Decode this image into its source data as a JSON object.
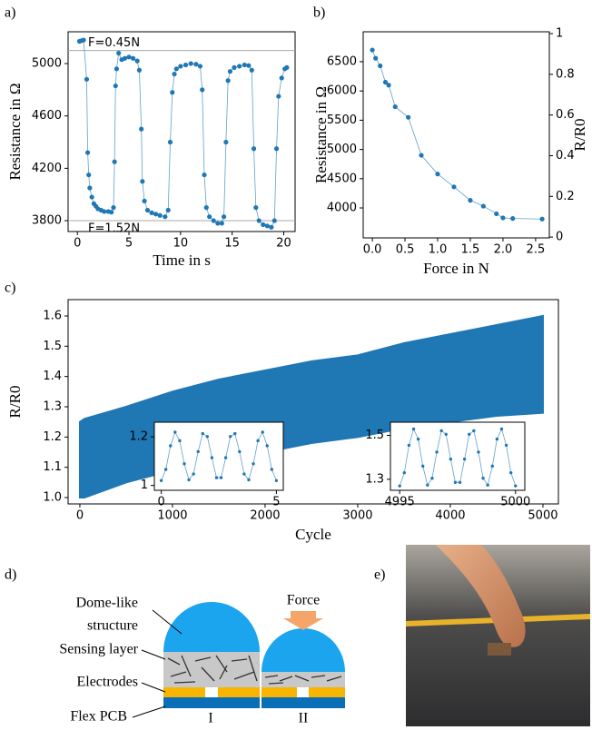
{
  "chart_data": [
    {
      "type": "line",
      "panel": "a)",
      "xlabel": "Time in s",
      "ylabel": "Resistance in Ω",
      "color": "#1f77b4",
      "x": [
        0.2,
        0.4,
        0.6,
        0.9,
        1.0,
        1.1,
        1.2,
        1.4,
        1.6,
        1.8,
        2.0,
        2.3,
        2.6,
        3.0,
        3.3,
        3.5,
        3.6,
        3.7,
        3.8,
        4.0,
        4.3,
        4.6,
        5.0,
        5.4,
        5.8,
        6.0,
        6.2,
        6.3,
        6.5,
        6.8,
        7.2,
        7.6,
        8.0,
        8.5,
        8.8,
        9.0,
        9.2,
        9.4,
        9.6,
        10.0,
        10.5,
        11.0,
        11.5,
        11.9,
        12.1,
        12.3,
        12.5,
        12.8,
        13.2,
        13.6,
        14.0,
        14.2,
        14.4,
        14.6,
        14.8,
        15.2,
        15.7,
        16.2,
        16.6,
        16.9,
        17.1,
        17.3,
        17.6,
        18.0,
        18.4,
        18.8,
        19.1,
        19.3,
        19.5,
        19.8,
        20.1,
        20.3
      ],
      "values": [
        5170,
        5175,
        5180,
        4880,
        4320,
        4150,
        4050,
        3980,
        3930,
        3910,
        3890,
        3880,
        3870,
        3870,
        3865,
        3900,
        4250,
        4830,
        4960,
        5080,
        5030,
        5040,
        5050,
        5040,
        5020,
        4950,
        4500,
        4100,
        3950,
        3880,
        3860,
        3850,
        3840,
        3830,
        3880,
        4400,
        4780,
        4920,
        4960,
        4980,
        4990,
        5000,
        4995,
        4980,
        4800,
        4150,
        3900,
        3830,
        3800,
        3780,
        3780,
        3830,
        4400,
        4870,
        4940,
        4970,
        4980,
        4990,
        4985,
        4950,
        4350,
        3900,
        3800,
        3770,
        3760,
        3750,
        3800,
        4350,
        4750,
        4890,
        4960,
        4970
      ],
      "xlim": [
        -0.9,
        21.1
      ],
      "ylim": [
        3717,
        5243
      ],
      "xticks": [
        0,
        5,
        10,
        15,
        20
      ],
      "yticks": [
        3800,
        4200,
        4600,
        5000
      ],
      "reference_lines": [
        {
          "value": 5100,
          "label": "F=0.45N"
        },
        {
          "value": 3800,
          "label": "F=1.52N"
        }
      ]
    },
    {
      "type": "line",
      "panel": "b)",
      "xlabel": "Force in N",
      "ylabel": "Resistance in Ω",
      "y2label": "R/R0",
      "color": "#1f77b4",
      "x": [
        0.0,
        0.05,
        0.12,
        0.2,
        0.25,
        0.35,
        0.55,
        0.75,
        1.0,
        1.25,
        1.5,
        1.7,
        1.9,
        2.0,
        2.15,
        2.6
      ],
      "values": [
        6700,
        6560,
        6430,
        6150,
        6100,
        5730,
        5550,
        4900,
        4580,
        4360,
        4130,
        4030,
        3900,
        3830,
        3820,
        3810
      ],
      "xlim": [
        -0.14,
        2.71
      ],
      "ylim": [
        3488,
        7012
      ],
      "y2lim": [
        -0.004,
        1.009
      ],
      "xticks": [
        {
          "value": 0,
          "label": "0.0"
        },
        0.5,
        {
          "value": 1,
          "label": "1.0"
        },
        1.5,
        {
          "value": 2,
          "label": "2.0"
        },
        2.5
      ],
      "yticks": [
        4000,
        4500,
        5000,
        5500,
        6000,
        6500
      ],
      "y2ticks": [
        0,
        0.2,
        0.4,
        0.6,
        0.8,
        1
      ]
    },
    {
      "type": "band",
      "panel": "c)",
      "xlabel": "Cycle",
      "ylabel": "R/R0",
      "color": "#1f77b4",
      "x": [
        0,
        50,
        500,
        1000,
        1500,
        2000,
        2500,
        3000,
        3500,
        4000,
        4500,
        5000
      ],
      "band_high": [
        1.25,
        1.26,
        1.3,
        1.35,
        1.39,
        1.42,
        1.45,
        1.47,
        1.51,
        1.54,
        1.57,
        1.6
      ],
      "band_low": [
        1.0,
        1.0,
        1.05,
        1.09,
        1.12,
        1.15,
        1.18,
        1.2,
        1.23,
        1.25,
        1.27,
        1.28
      ],
      "xlim": [
        -127,
        5167
      ],
      "ylim": [
        0.979,
        1.654
      ],
      "xticks": [
        0,
        1000,
        2000,
        3000,
        4000,
        5000
      ],
      "yticks": [
        {
          "value": 1,
          "label": "1.0"
        },
        1.1,
        1.2,
        1.3,
        1.4,
        1.5,
        1.6
      ]
    },
    {
      "type": "line",
      "color": "#1f77b4",
      "x": [
        0,
        0.2,
        0.4,
        0.6,
        0.8,
        1.0,
        1.2,
        1.4,
        1.6,
        1.8,
        2.0,
        2.2,
        2.4,
        2.6,
        2.8,
        3.0,
        3.2,
        3.4,
        3.6,
        3.8,
        4.0,
        4.2,
        4.4,
        4.6,
        4.8,
        5.0
      ],
      "values": [
        1.02,
        1.066,
        1.163,
        1.219,
        1.184,
        1.089,
        1.023,
        1.047,
        1.139,
        1.213,
        1.201,
        1.114,
        1.032,
        1.032,
        1.114,
        1.201,
        1.213,
        1.139,
        1.047,
        1.023,
        1.089,
        1.184,
        1.219,
        1.163,
        1.066,
        1.02
      ],
      "xlim": [
        -0.3,
        5.3
      ],
      "ylim": [
        0.98,
        1.26
      ],
      "xticks": [
        0,
        5
      ],
      "yticks": [
        1,
        1.2
      ]
    },
    {
      "type": "line",
      "color": "#1f77b4",
      "x": [
        4995.0,
        4995.2,
        4995.4,
        4995.6,
        4995.8,
        4996.0,
        4996.2,
        4996.4,
        4996.6,
        4996.8,
        4997.0,
        4997.2,
        4997.4,
        4997.6,
        4997.8,
        4998.0,
        4998.2,
        4998.4,
        4998.6,
        4998.8,
        4999.0,
        4999.2,
        4999.4,
        4999.6,
        4999.8,
        5000.0
      ],
      "values": [
        1.27,
        1.33,
        1.455,
        1.529,
        1.483,
        1.36,
        1.274,
        1.305,
        1.424,
        1.521,
        1.505,
        1.392,
        1.286,
        1.286,
        1.392,
        1.505,
        1.521,
        1.424,
        1.305,
        1.274,
        1.36,
        1.483,
        1.529,
        1.455,
        1.33,
        1.27
      ],
      "xlim": [
        4994.6,
        5000.4
      ],
      "ylim": [
        1.25,
        1.56
      ],
      "xticks": [
        4995,
        5000
      ],
      "yticks": [
        1.3,
        1.5
      ]
    }
  ],
  "diagram": {
    "panel": "d)",
    "labels": [
      "Dome-like",
      "structure",
      "Sensing layer",
      "Electrodes",
      "Flex PCB"
    ],
    "force": "Force",
    "states": [
      "I",
      "II"
    ]
  },
  "photo": {
    "panel": "e)"
  }
}
